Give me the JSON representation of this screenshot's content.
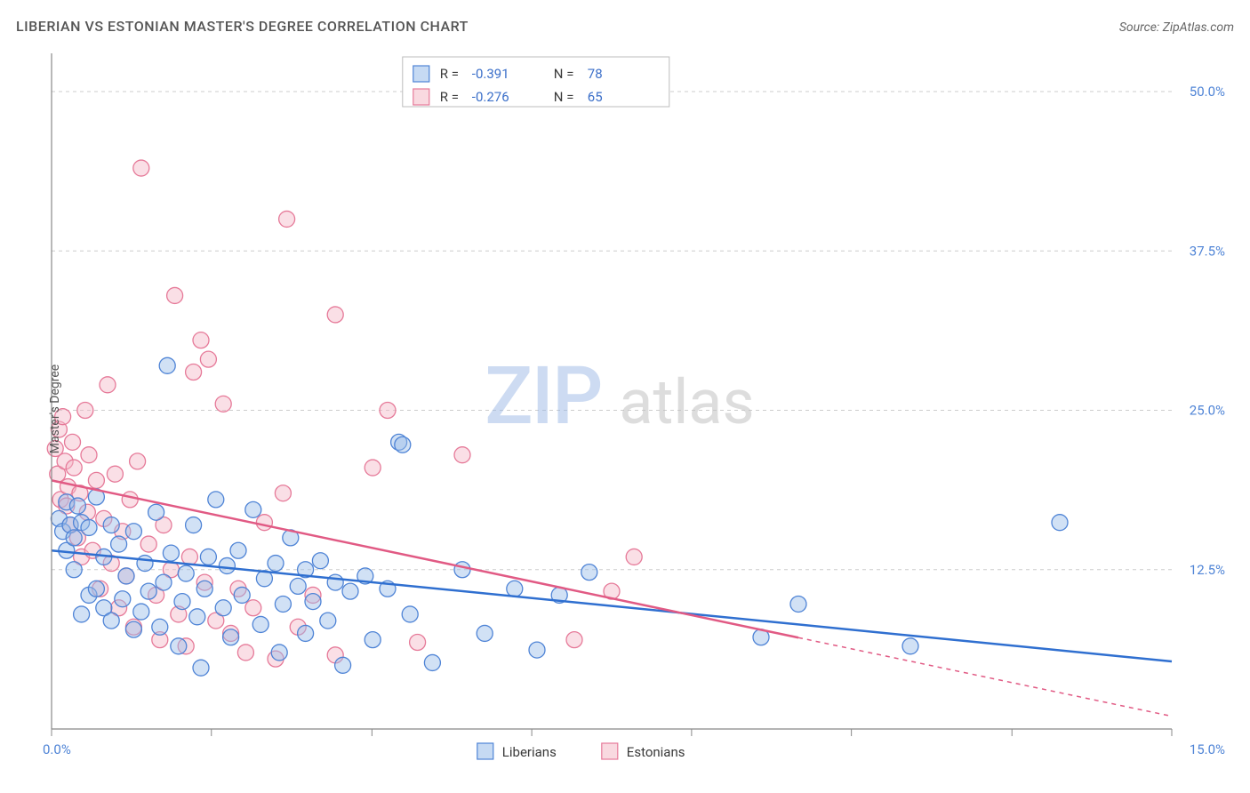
{
  "title": "LIBERIAN VS ESTONIAN MASTER'S DEGREE CORRELATION CHART",
  "source": "Source: ZipAtlas.com",
  "ylabel": "Master's Degree",
  "watermark": {
    "z": "ZIP",
    "a": "atlas"
  },
  "chart": {
    "type": "scatter",
    "background_color": "#ffffff",
    "grid_color": "#cccccc",
    "axis_color": "#888888",
    "xlim": [
      0,
      15
    ],
    "ylim": [
      0,
      53
    ],
    "ytick_values": [
      12.5,
      25.0,
      37.5,
      50.0
    ],
    "ytick_labels": [
      "12.5%",
      "25.0%",
      "37.5%",
      "50.0%"
    ],
    "xtick_values": [
      0,
      2.14,
      4.29,
      6.43,
      8.57,
      10.71,
      12.86,
      15
    ],
    "xtick_labels_shown": {
      "0": "0.0%",
      "15": "15.0%"
    },
    "marker_radius": 9,
    "label_fontsize": 15,
    "axis_label_color": "#4f84d6",
    "legend_top": {
      "rows": [
        {
          "swatch": "liberians",
          "r_label": "R = ",
          "r": "-0.391",
          "n_label": "N = ",
          "n": "78"
        },
        {
          "swatch": "estonians",
          "r_label": "R = ",
          "r": "-0.276",
          "n_label": "N = ",
          "n": "65"
        }
      ]
    },
    "legend_bottom": [
      {
        "key": "liberians",
        "label": "Liberians"
      },
      {
        "key": "estonians",
        "label": "Estonians"
      }
    ],
    "series": {
      "liberians": {
        "color_fill": "#98bce9",
        "color_stroke": "#4f84d6",
        "trend_color": "#2f6fd0",
        "trend": {
          "x0": 0,
          "y0": 14.0,
          "x1": 15,
          "y1": 5.3
        },
        "trend_dash_from_x": null,
        "points": [
          [
            0.1,
            16.5
          ],
          [
            0.15,
            15.5
          ],
          [
            0.2,
            14.0
          ],
          [
            0.2,
            17.8
          ],
          [
            0.25,
            16.0
          ],
          [
            0.3,
            15.0
          ],
          [
            0.3,
            12.5
          ],
          [
            0.35,
            17.5
          ],
          [
            0.4,
            16.2
          ],
          [
            0.4,
            9.0
          ],
          [
            0.5,
            15.8
          ],
          [
            0.5,
            10.5
          ],
          [
            0.6,
            18.2
          ],
          [
            0.6,
            11.0
          ],
          [
            0.7,
            13.5
          ],
          [
            0.7,
            9.5
          ],
          [
            0.8,
            16.0
          ],
          [
            0.8,
            8.5
          ],
          [
            0.9,
            14.5
          ],
          [
            0.95,
            10.2
          ],
          [
            1.0,
            12.0
          ],
          [
            1.1,
            7.8
          ],
          [
            1.1,
            15.5
          ],
          [
            1.2,
            9.2
          ],
          [
            1.25,
            13.0
          ],
          [
            1.3,
            10.8
          ],
          [
            1.4,
            17.0
          ],
          [
            1.45,
            8.0
          ],
          [
            1.5,
            11.5
          ],
          [
            1.55,
            28.5
          ],
          [
            1.6,
            13.8
          ],
          [
            1.7,
            6.5
          ],
          [
            1.75,
            10.0
          ],
          [
            1.8,
            12.2
          ],
          [
            1.9,
            16.0
          ],
          [
            1.95,
            8.8
          ],
          [
            2.0,
            4.8
          ],
          [
            2.05,
            11.0
          ],
          [
            2.1,
            13.5
          ],
          [
            2.2,
            18.0
          ],
          [
            2.3,
            9.5
          ],
          [
            2.35,
            12.8
          ],
          [
            2.4,
            7.2
          ],
          [
            2.5,
            14.0
          ],
          [
            2.55,
            10.5
          ],
          [
            2.7,
            17.2
          ],
          [
            2.8,
            8.2
          ],
          [
            2.85,
            11.8
          ],
          [
            3.0,
            13.0
          ],
          [
            3.05,
            6.0
          ],
          [
            3.1,
            9.8
          ],
          [
            3.2,
            15.0
          ],
          [
            3.3,
            11.2
          ],
          [
            3.4,
            12.5
          ],
          [
            3.4,
            7.5
          ],
          [
            3.5,
            10.0
          ],
          [
            3.6,
            13.2
          ],
          [
            3.7,
            8.5
          ],
          [
            3.8,
            11.5
          ],
          [
            3.9,
            5.0
          ],
          [
            4.0,
            10.8
          ],
          [
            4.2,
            12.0
          ],
          [
            4.3,
            7.0
          ],
          [
            4.5,
            11.0
          ],
          [
            4.65,
            22.5
          ],
          [
            4.7,
            22.3
          ],
          [
            4.8,
            9.0
          ],
          [
            5.1,
            5.2
          ],
          [
            5.5,
            12.5
          ],
          [
            5.8,
            7.5
          ],
          [
            6.2,
            11.0
          ],
          [
            6.5,
            6.2
          ],
          [
            6.8,
            10.5
          ],
          [
            7.2,
            12.3
          ],
          [
            9.5,
            7.2
          ],
          [
            10.0,
            9.8
          ],
          [
            11.5,
            6.5
          ],
          [
            13.5,
            16.2
          ]
        ]
      },
      "estonians": {
        "color_fill": "#f4b9c7",
        "color_stroke": "#e67a99",
        "trend_color": "#e15a84",
        "trend": {
          "x0": 0,
          "y0": 19.5,
          "x1": 15,
          "y1": 1.0
        },
        "trend_dash_from_x": 10.0,
        "points": [
          [
            0.05,
            22.0
          ],
          [
            0.08,
            20.0
          ],
          [
            0.1,
            23.5
          ],
          [
            0.12,
            18.0
          ],
          [
            0.15,
            24.5
          ],
          [
            0.18,
            21.0
          ],
          [
            0.2,
            17.5
          ],
          [
            0.22,
            19.0
          ],
          [
            0.25,
            16.0
          ],
          [
            0.28,
            22.5
          ],
          [
            0.3,
            20.5
          ],
          [
            0.35,
            15.0
          ],
          [
            0.38,
            18.5
          ],
          [
            0.4,
            13.5
          ],
          [
            0.45,
            25.0
          ],
          [
            0.48,
            17.0
          ],
          [
            0.5,
            21.5
          ],
          [
            0.55,
            14.0
          ],
          [
            0.6,
            19.5
          ],
          [
            0.65,
            11.0
          ],
          [
            0.7,
            16.5
          ],
          [
            0.75,
            27.0
          ],
          [
            0.8,
            13.0
          ],
          [
            0.85,
            20.0
          ],
          [
            0.9,
            9.5
          ],
          [
            0.95,
            15.5
          ],
          [
            1.0,
            12.0
          ],
          [
            1.05,
            18.0
          ],
          [
            1.1,
            8.0
          ],
          [
            1.15,
            21.0
          ],
          [
            1.2,
            44.0
          ],
          [
            1.3,
            14.5
          ],
          [
            1.4,
            10.5
          ],
          [
            1.45,
            7.0
          ],
          [
            1.5,
            16.0
          ],
          [
            1.6,
            12.5
          ],
          [
            1.65,
            34.0
          ],
          [
            1.7,
            9.0
          ],
          [
            1.8,
            6.5
          ],
          [
            1.85,
            13.5
          ],
          [
            1.9,
            28.0
          ],
          [
            2.0,
            30.5
          ],
          [
            2.05,
            11.5
          ],
          [
            2.1,
            29.0
          ],
          [
            2.2,
            8.5
          ],
          [
            2.3,
            25.5
          ],
          [
            2.4,
            7.5
          ],
          [
            2.5,
            11.0
          ],
          [
            2.6,
            6.0
          ],
          [
            2.7,
            9.5
          ],
          [
            2.85,
            16.2
          ],
          [
            3.0,
            5.5
          ],
          [
            3.1,
            18.5
          ],
          [
            3.15,
            40.0
          ],
          [
            3.3,
            8.0
          ],
          [
            3.5,
            10.5
          ],
          [
            3.8,
            32.5
          ],
          [
            3.8,
            5.8
          ],
          [
            4.3,
            20.5
          ],
          [
            4.5,
            25.0
          ],
          [
            4.9,
            6.8
          ],
          [
            5.5,
            21.5
          ],
          [
            7.0,
            7.0
          ],
          [
            7.5,
            10.8
          ],
          [
            7.8,
            13.5
          ]
        ]
      }
    }
  }
}
